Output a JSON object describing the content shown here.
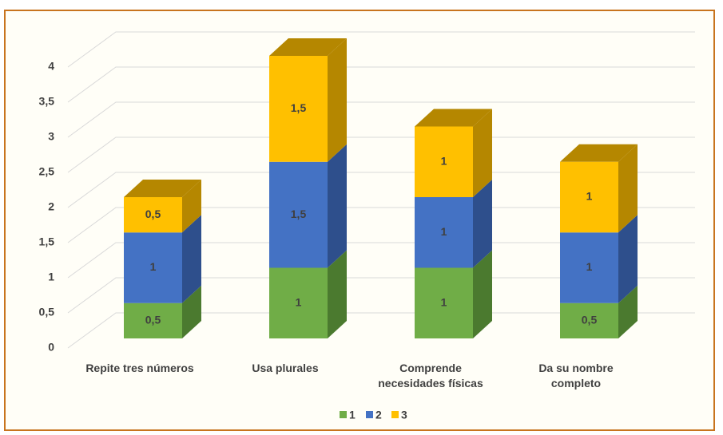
{
  "chart_data": {
    "type": "bar3d_stacked",
    "categories": [
      "Repite tres números",
      "Usa plurales",
      "Comprende\nnecesidades físicas",
      "Da su nombre\ncompleto"
    ],
    "series": [
      {
        "name": "1",
        "color": "#70ad47",
        "side": "#4b7a2f",
        "values": [
          0.5,
          1,
          1,
          0.5
        ],
        "value_labels": [
          "0,5",
          "1",
          "1",
          "0,5"
        ]
      },
      {
        "name": "2",
        "color": "#4472c4",
        "side": "#2e4f8c",
        "values": [
          1,
          1.5,
          1,
          1
        ],
        "value_labels": [
          "1",
          "1,5",
          "1",
          "1"
        ]
      },
      {
        "name": "3",
        "color": "#ffc000",
        "side": "#b58700",
        "values": [
          0.5,
          1.5,
          1,
          1
        ],
        "value_labels": [
          "0,5",
          "1,5",
          "1",
          "1"
        ]
      }
    ],
    "ylim": [
      0,
      4
    ],
    "yticks": [
      0,
      {
        "value": 0.5,
        "label": "0,5"
      },
      1,
      {
        "value": 1.5,
        "label": "1,5"
      },
      2,
      {
        "value": 2.5,
        "label": "2,5"
      },
      3,
      {
        "value": 3.5,
        "label": "3,5"
      },
      4
    ],
    "grid": true,
    "legend": "bottom"
  }
}
